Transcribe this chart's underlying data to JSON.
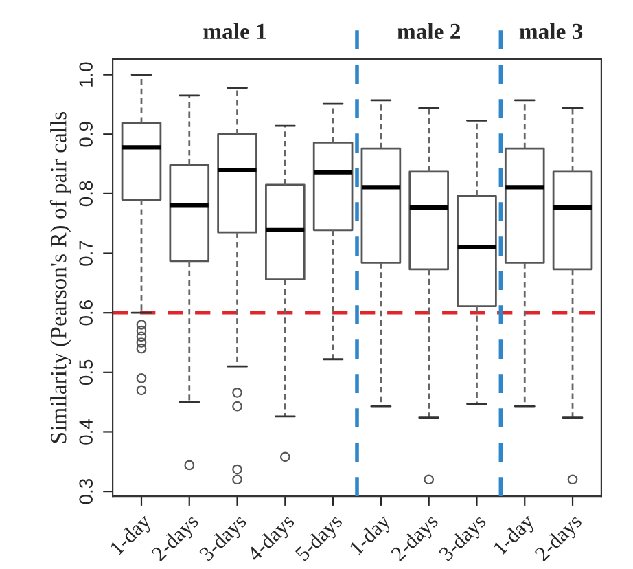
{
  "chart_data": {
    "type": "box",
    "ylabel": "Similarity (Pearson's R) of pair calls",
    "categories": [
      "1-day",
      "2-days",
      "3-days",
      "4-days",
      "5-days",
      "1-day",
      "2-days",
      "3-days",
      "1-day",
      "2-days"
    ],
    "annotations": [
      "male 1",
      "male 2",
      "male 3"
    ],
    "boxes": [
      {
        "low": 0.6,
        "q1": 0.79,
        "median": 0.878,
        "q3": 0.919,
        "high": 1.0,
        "outliers": [
          0.58,
          0.57,
          0.56,
          0.55,
          0.54,
          0.49,
          0.47
        ]
      },
      {
        "low": 0.45,
        "q1": 0.687,
        "median": 0.781,
        "q3": 0.848,
        "high": 0.965,
        "outliers": [
          0.344
        ]
      },
      {
        "low": 0.51,
        "q1": 0.735,
        "median": 0.84,
        "q3": 0.9,
        "high": 0.978,
        "outliers": [
          0.466,
          0.443,
          0.337,
          0.32
        ]
      },
      {
        "low": 0.426,
        "q1": 0.656,
        "median": 0.739,
        "q3": 0.815,
        "high": 0.914,
        "outliers": [
          0.358
        ]
      },
      {
        "low": 0.522,
        "q1": 0.739,
        "median": 0.836,
        "q3": 0.886,
        "high": 0.951
      },
      {
        "low": 0.443,
        "q1": 0.684,
        "median": 0.811,
        "q3": 0.876,
        "high": 0.957
      },
      {
        "low": 0.424,
        "q1": 0.673,
        "median": 0.777,
        "q3": 0.837,
        "high": 0.944,
        "outliers": [
          0.32
        ]
      },
      {
        "low": 0.447,
        "q1": 0.611,
        "median": 0.711,
        "q3": 0.796,
        "high": 0.923
      },
      {
        "low": 0.443,
        "q1": 0.684,
        "median": 0.811,
        "q3": 0.876,
        "high": 0.957
      },
      {
        "low": 0.424,
        "q1": 0.673,
        "median": 0.777,
        "q3": 0.837,
        "high": 0.944,
        "outliers": [
          0.32
        ]
      }
    ],
    "ylim": [
      0.292,
      1.026
    ],
    "yticks": [
      0.3,
      0.4,
      0.5,
      0.6,
      0.7,
      0.8,
      0.9,
      {
        "value": 1,
        "label": "1.0"
      }
    ],
    "ref_lines": [
      {
        "axis": "y",
        "value": 0.6,
        "color": "#e0262b",
        "line_style": "dashed"
      }
    ],
    "grid": false
  }
}
